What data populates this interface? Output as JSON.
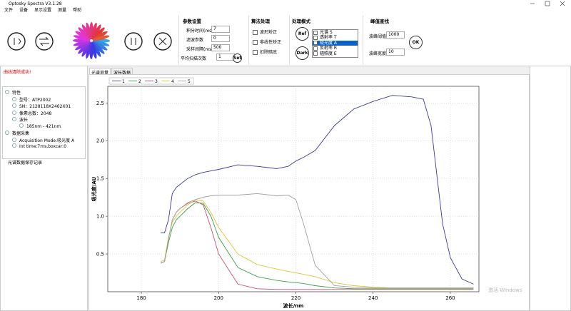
{
  "window": {
    "title": "Optosky Spectra V3.1.28"
  },
  "menu": [
    "文件",
    "设备",
    "显示设置",
    "测量",
    "帮助"
  ],
  "params": {
    "title": "参数设置",
    "fields": [
      {
        "label": "积分时间(ms)",
        "value": "7"
      },
      {
        "label": "滤波参数",
        "value": "0"
      },
      {
        "label": "采样间隔(ms)",
        "value": "500"
      },
      {
        "label": "平均扫描次数",
        "value": "1"
      }
    ],
    "button": "Set"
  },
  "algo": {
    "title": "算法处理",
    "options": [
      "波形矫正",
      "非线性矫正",
      "扣除暗底"
    ]
  },
  "mode": {
    "title": "处理模式",
    "buttons": [
      "Ref",
      "Dark"
    ],
    "list": [
      "光谱 S",
      "透射率 T",
      "吸光度 A",
      "反射率 R",
      "辐照度 E"
    ],
    "selected": 2
  },
  "peak": {
    "title": "峰值查找",
    "fields": [
      {
        "label": "波峰阈值",
        "value": "1000"
      },
      {
        "label": "波峰宽度",
        "value": "10"
      }
    ],
    "button": "OK"
  },
  "status": "曲线清除成功!",
  "tree": [
    {
      "label": "特性",
      "children": [
        {
          "label": "型号：ATP2002"
        },
        {
          "label": "SN：2128118X2462X01"
        },
        {
          "label": "像素总数：2048"
        },
        {
          "label": "波长",
          "children": [
            {
              "label": "185nm - 421nm"
            }
          ]
        }
      ]
    },
    {
      "label": "数据采集",
      "children": [
        {
          "label": "Acquisition Mode:吸光度 A"
        },
        {
          "label": "Int time:7ms,boxcar:0"
        }
      ]
    }
  ],
  "log_title": "光谱数据保存记录",
  "tabs": [
    "光谱测量",
    "波长数据"
  ],
  "watermark": "激活 Windows",
  "chart_data": {
    "type": "line",
    "x_label": "波长/nm",
    "y_label": "吸光度/AU",
    "x": [
      185,
      186,
      187,
      188,
      189,
      190,
      192,
      194,
      196,
      198,
      200,
      205,
      210,
      215,
      218,
      220,
      222,
      225,
      230,
      235,
      240,
      245,
      250,
      253,
      255,
      258,
      260,
      263,
      266
    ],
    "series": [
      {
        "name": "1",
        "color": "#3a3a9c",
        "values": [
          0.78,
          0.78,
          0.95,
          1.3,
          1.38,
          1.42,
          1.5,
          1.55,
          1.58,
          1.6,
          1.62,
          1.68,
          1.66,
          1.63,
          1.66,
          1.73,
          1.78,
          1.87,
          2.2,
          2.42,
          2.52,
          2.6,
          2.58,
          2.55,
          2.2,
          0.9,
          0.45,
          0.17,
          0.1
        ]
      },
      {
        "name": "2",
        "color": "#3aa04a",
        "values": [
          0.38,
          0.4,
          0.65,
          0.85,
          0.95,
          1.0,
          1.1,
          1.18,
          1.17,
          1.0,
          0.72,
          0.32,
          0.2,
          0.15,
          0.13,
          0.12,
          0.11,
          0.08,
          0.05,
          0.04,
          0.04,
          0.04,
          0.04,
          0.04,
          0.04,
          0.04,
          0.04,
          0.04,
          0.04
        ]
      },
      {
        "name": "3",
        "color": "#c8506a",
        "values": [
          0.38,
          0.4,
          0.7,
          0.95,
          1.05,
          1.1,
          1.17,
          1.2,
          1.15,
          0.85,
          0.5,
          0.1,
          0.04,
          0.03,
          0.03,
          0.03,
          0.03,
          0.03,
          0.03,
          0.03,
          0.03,
          0.03,
          0.03,
          0.03,
          0.03,
          0.03,
          0.03,
          0.03,
          0.03
        ]
      },
      {
        "name": "4",
        "color": "#d8c840",
        "values": [
          0.4,
          0.42,
          0.72,
          0.92,
          1.0,
          1.05,
          1.15,
          1.22,
          1.2,
          1.05,
          0.85,
          0.5,
          0.36,
          0.3,
          0.27,
          0.25,
          0.23,
          0.2,
          0.12,
          0.08,
          0.06,
          0.05,
          0.05,
          0.05,
          0.05,
          0.05,
          0.05,
          0.05,
          0.05
        ]
      },
      {
        "name": "5",
        "color": "#a0a0a0",
        "values": [
          0.38,
          0.4,
          0.7,
          0.95,
          1.05,
          1.1,
          1.18,
          1.22,
          1.25,
          1.27,
          1.28,
          1.28,
          1.3,
          1.27,
          1.28,
          1.22,
          0.9,
          0.35,
          0.08,
          0.06,
          0.05,
          0.05,
          0.05,
          0.05,
          0.05,
          0.05,
          0.05,
          0.05,
          0.05
        ]
      }
    ],
    "xlim": [
      171.3,
      267.4
    ],
    "ylim": [
      0,
      2.72
    ],
    "xticks": [
      180,
      200,
      220,
      240,
      260
    ],
    "yticks": [
      0.5,
      {
        "value": 1,
        "label": "1.0"
      },
      1.5,
      {
        "value": 2,
        "label": "2.0"
      },
      2.5
    ],
    "grid": true,
    "legend": "top-left"
  }
}
